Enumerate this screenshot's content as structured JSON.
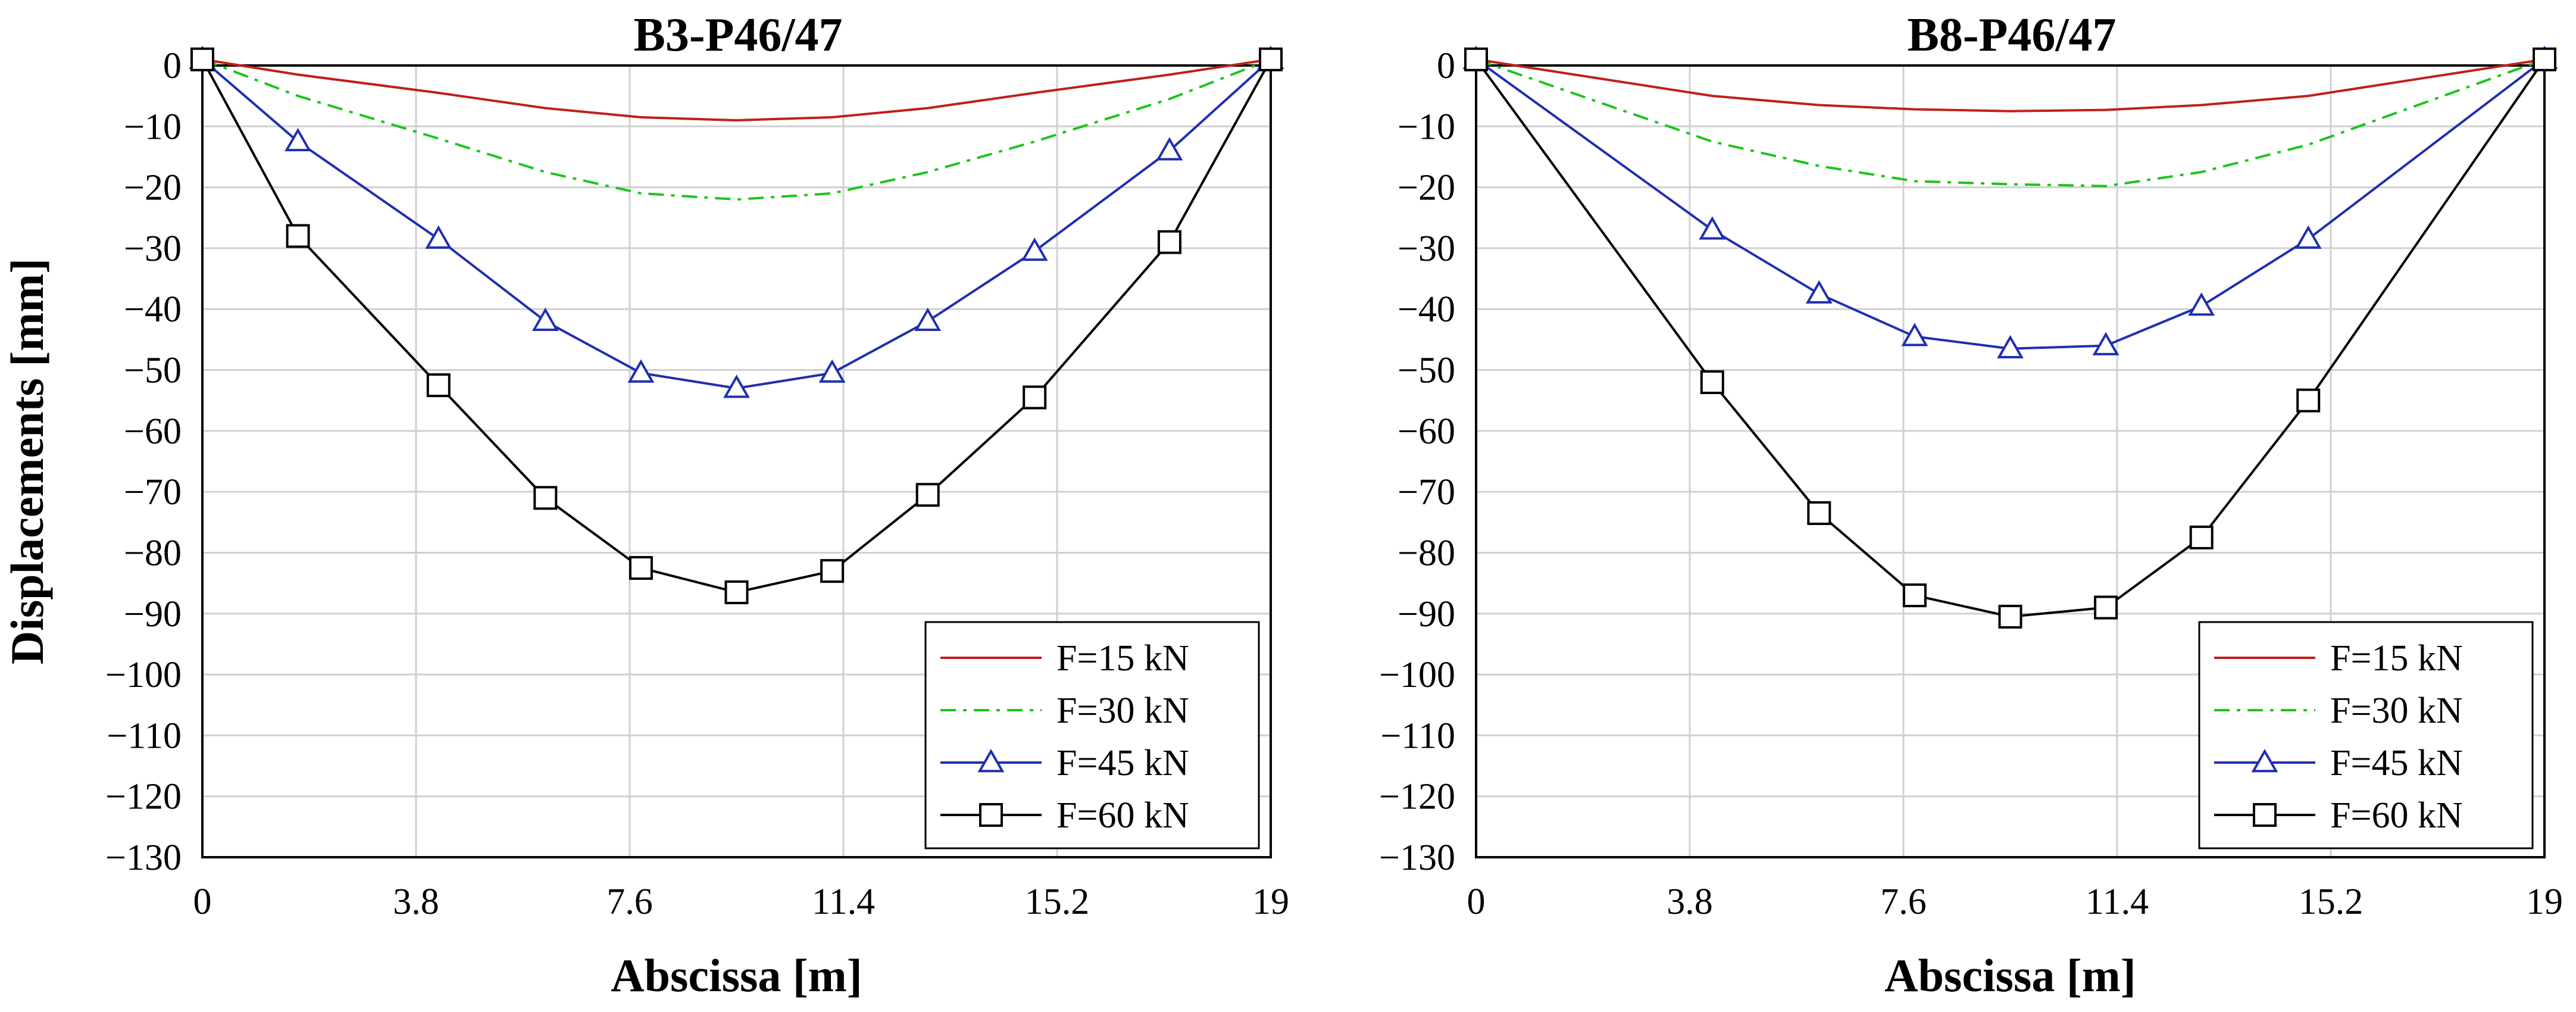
{
  "chart_data": [
    {
      "type": "line",
      "title": "B3-P46/47",
      "xlabel": "Abscissa [m]",
      "ylabel": "Displacements [mm]",
      "xlim": [
        0,
        19
      ],
      "ylim": [
        -130,
        0
      ],
      "xticks": [
        "0",
        "3.8",
        "7.6",
        "11.4",
        "15.2",
        "19"
      ],
      "yticks": [
        "0",
        "−10",
        "−20",
        "−30",
        "−40",
        "−50",
        "−60",
        "−70",
        "−80",
        "−90",
        "−100",
        "−110",
        "−120",
        "−130"
      ],
      "legend_position": "bottom-right",
      "series": [
        {
          "name": "F=15 kN",
          "color": "#c0201a",
          "style": "solid",
          "marker": "none",
          "x": [
            0,
            1.7,
            4.2,
            6.1,
            7.8,
            9.5,
            11.2,
            12.9,
            14.8,
            17.2,
            19
          ],
          "y": [
            1,
            -1.5,
            -4.5,
            -7,
            -8.5,
            -9,
            -8.5,
            -7,
            -4.5,
            -1.5,
            1
          ]
        },
        {
          "name": "F=30 kN",
          "color": "#1bc51b",
          "style": "dashdot",
          "marker": "none",
          "x": [
            0,
            1.7,
            4.2,
            6.1,
            7.8,
            9.5,
            11.2,
            12.9,
            14.8,
            17.2,
            19
          ],
          "y": [
            1,
            -5,
            -12,
            -17.5,
            -21,
            -22,
            -21,
            -17.5,
            -12.5,
            -5.5,
            1
          ]
        },
        {
          "name": "F=45 kN",
          "color": "#1f2fb0",
          "style": "solid",
          "marker": "triangle",
          "x": [
            0,
            1.7,
            4.2,
            6.1,
            7.8,
            9.5,
            11.2,
            12.9,
            14.8,
            17.2,
            19
          ],
          "y": [
            1,
            -12.5,
            -28.5,
            -42,
            -50.5,
            -53,
            -50.5,
            -42,
            -30.5,
            -14,
            1
          ]
        },
        {
          "name": "F=60 kN",
          "color": "#000000",
          "style": "solid",
          "marker": "square",
          "x": [
            0,
            1.7,
            4.2,
            6.1,
            7.8,
            9.5,
            11.2,
            12.9,
            14.8,
            17.2,
            19
          ],
          "y": [
            1,
            -28,
            -52.5,
            -71,
            -82.5,
            -86.5,
            -83,
            -70.5,
            -54.5,
            -29,
            1
          ]
        }
      ]
    },
    {
      "type": "line",
      "title": "B8-P46/47",
      "xlabel": "Abscissa [m]",
      "ylabel": "",
      "xlim": [
        0,
        19
      ],
      "ylim": [
        -130,
        0
      ],
      "xticks": [
        "0",
        "3.8",
        "7.6",
        "11.4",
        "15.2",
        "19"
      ],
      "yticks": [
        "0",
        "−10",
        "−20",
        "−30",
        "−40",
        "−50",
        "−60",
        "−70",
        "−80",
        "−90",
        "−100",
        "−110",
        "−120",
        "−130"
      ],
      "legend_position": "bottom-right",
      "series": [
        {
          "name": "F=15 kN",
          "color": "#c0201a",
          "style": "solid",
          "marker": "none",
          "x": [
            0,
            4.2,
            6.1,
            7.8,
            9.5,
            11.2,
            12.9,
            14.8,
            19
          ],
          "y": [
            1,
            -5,
            -6.5,
            -7.2,
            -7.5,
            -7.3,
            -6.5,
            -5,
            1
          ]
        },
        {
          "name": "F=30 kN",
          "color": "#1bc51b",
          "style": "dashdot",
          "marker": "none",
          "x": [
            0,
            4.2,
            6.1,
            7.8,
            9.5,
            11.2,
            12.9,
            14.8,
            19
          ],
          "y": [
            1,
            -12.5,
            -16.5,
            -19,
            -19.5,
            -19.8,
            -17.5,
            -13,
            1
          ]
        },
        {
          "name": "F=45 kN",
          "color": "#1f2fb0",
          "style": "solid",
          "marker": "triangle",
          "x": [
            0,
            4.2,
            6.1,
            7.8,
            9.5,
            11.2,
            12.9,
            14.8,
            19
          ],
          "y": [
            1,
            -27,
            -37.5,
            -44.5,
            -46.5,
            -46,
            -39.5,
            -28.5,
            1
          ]
        },
        {
          "name": "F=60 kN",
          "color": "#000000",
          "style": "solid",
          "marker": "square",
          "x": [
            0,
            4.2,
            6.1,
            7.8,
            9.5,
            11.2,
            12.9,
            14.8,
            19
          ],
          "y": [
            1,
            -52,
            -73.5,
            -87,
            -90.5,
            -89,
            -77.5,
            -55,
            1
          ]
        }
      ]
    }
  ]
}
